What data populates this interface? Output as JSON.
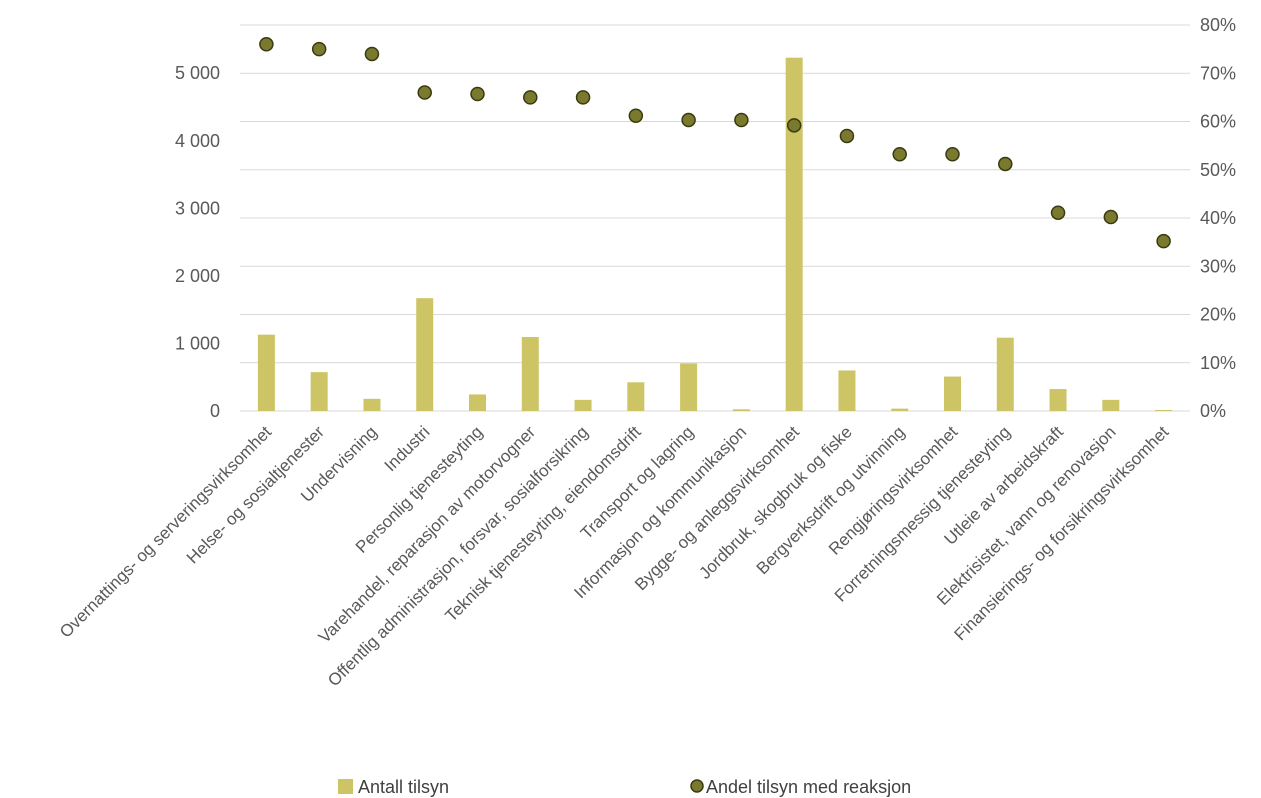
{
  "chart_data": {
    "type": "bar+scatter",
    "categories": [
      "Overnattings- og serveringsvirksomhet",
      "Helse- og sosialtjenester",
      "Undervisning",
      "Industri",
      "Personlig tjenesteyting",
      "Varehandel, reparasjon av motorvogner",
      "Offentlig administrasjon, forsvar, sosialforsikring",
      "Teknisk tjenesteyting, eiendomsdrift",
      "Transport og lagring",
      "Informasjon og kommunikasjon",
      "Bygge- og anleggsvirksomhet",
      "Jordbruk, skogbruk og fiske",
      "Bergverksdrift og utvinning",
      "Rengjøringsvirksomhet",
      "Forretningsmessig tjenesteyting",
      "Utleie av arbeidskraft",
      "Elektrisistet, vann og renovasjon",
      "Finansierings- og forsikringsvirksomhet"
    ],
    "series": [
      {
        "name": "Antall tilsyn",
        "kind": "bar",
        "axis": "left",
        "color": "#cdc565",
        "values": [
          1130,
          575,
          180,
          1670,
          245,
          1095,
          165,
          425,
          705,
          25,
          5230,
          600,
          35,
          510,
          1085,
          325,
          165,
          15
        ]
      },
      {
        "name": "Andel tilsyn med reaksjon",
        "kind": "scatter",
        "axis": "right",
        "color": "#7a7a2f",
        "values": [
          0.76,
          0.75,
          0.74,
          0.66,
          0.657,
          0.65,
          0.65,
          0.612,
          0.603,
          0.603,
          0.592,
          0.57,
          0.532,
          0.532,
          0.512,
          0.411,
          0.402,
          0.352
        ]
      }
    ],
    "y_left": {
      "min": 0,
      "max": 5714,
      "ticks": [
        0,
        1000,
        2000,
        3000,
        4000,
        5000
      ],
      "tick_labels": [
        "0",
        "1 000",
        "2 000",
        "3 000",
        "4 000",
        "5 000"
      ]
    },
    "y_right": {
      "min": 0,
      "max": 0.8,
      "ticks": [
        0,
        0.1,
        0.2,
        0.3,
        0.4,
        0.5,
        0.6,
        0.7,
        0.8
      ],
      "tick_labels": [
        "0%",
        "10%",
        "20%",
        "30%",
        "40%",
        "50%",
        "60%",
        "70%",
        "80%"
      ]
    },
    "grid": "horizontal",
    "legend_position": "bottom",
    "title": "",
    "xlabel": "",
    "ylabel": ""
  }
}
